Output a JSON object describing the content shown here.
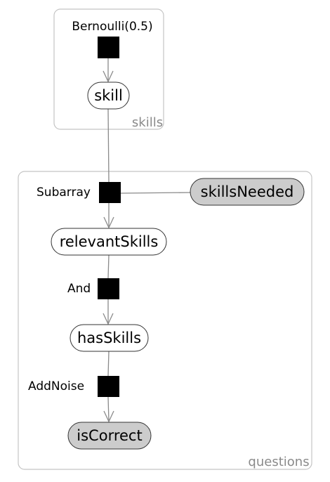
{
  "plates": {
    "skills": "skills",
    "questions": "questions"
  },
  "factors": {
    "bernoulli": "Bernoulli(0.5)",
    "subarray": "Subarray",
    "and": "And",
    "add_noise": "AddNoise"
  },
  "nodes": {
    "skill": "skill",
    "skills_needed": "skillsNeeded",
    "relevant_skills": "relevantSkills",
    "has_skills": "hasSkills",
    "is_correct": "isCorrect"
  },
  "colors": {
    "observed_fill": "#cccccc",
    "latent_fill": "#ffffff",
    "factor_fill": "#000000",
    "edge": "#8a8a8a",
    "plate_border": "#c4c4c4",
    "plate_label": "#8a8a8a"
  }
}
